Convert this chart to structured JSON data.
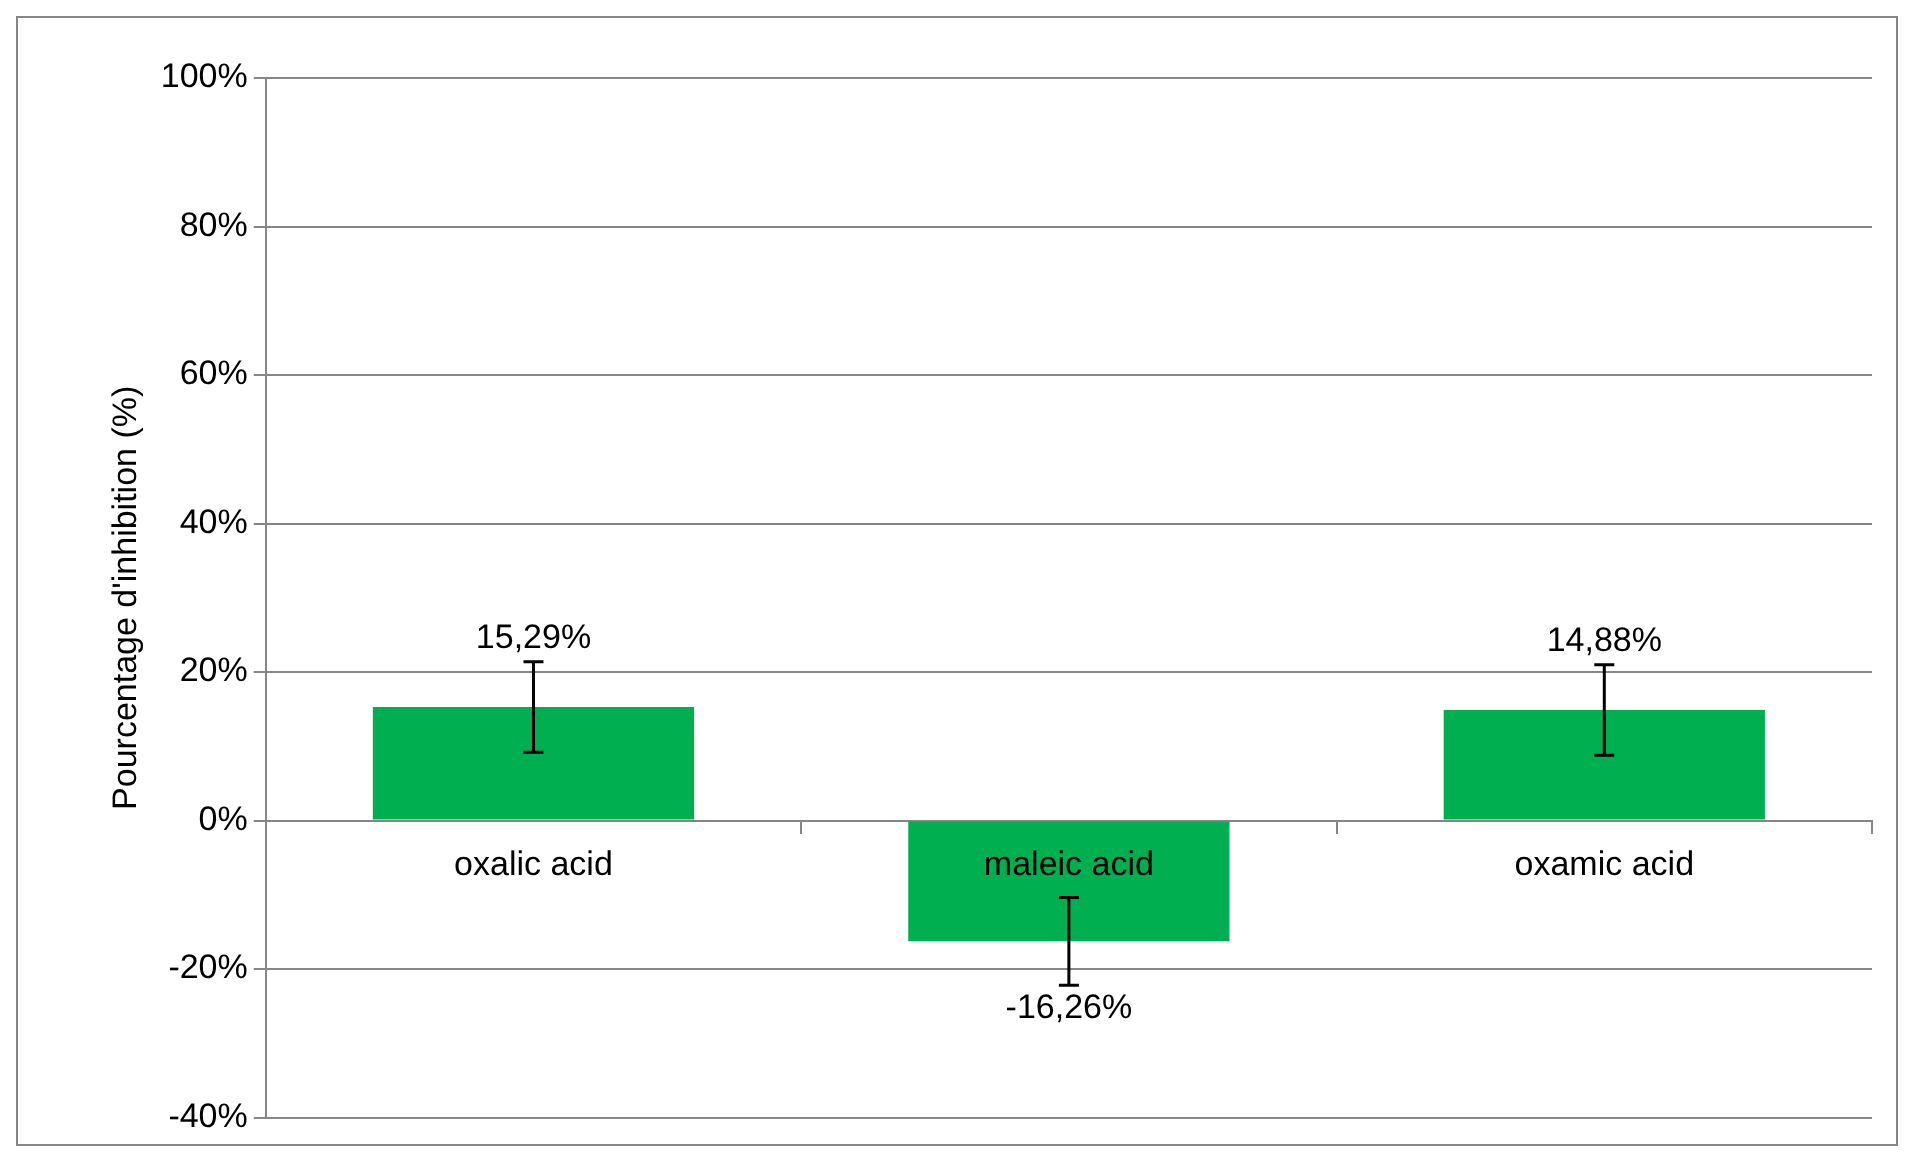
{
  "chart_data": {
    "type": "bar",
    "ylabel": "Pourcentage d'inhibition (%)",
    "categories": [
      "oxalic acid",
      "maleic acid",
      "oxamic acid"
    ],
    "series": [
      {
        "color": "#00b050",
        "values": [
          15.29,
          -16.26,
          14.88
        ],
        "errors": [
          6.1,
          5.9,
          6.1
        ],
        "value_labels": [
          "15,29%",
          "-16,26%",
          "14,88%"
        ]
      }
    ],
    "ylim": [
      -40,
      100
    ],
    "yticks": [
      {
        "value": -40,
        "label": "-40%"
      },
      {
        "value": -20,
        "label": "-20%"
      },
      {
        "value": 0,
        "label": "0%"
      },
      {
        "value": 20,
        "label": "20%"
      },
      {
        "value": 40,
        "label": "40%"
      },
      {
        "value": 60,
        "label": "60%"
      },
      {
        "value": 80,
        "label": "80%"
      },
      {
        "value": 100,
        "label": "100%"
      }
    ],
    "grid": "y",
    "legend": false
  }
}
